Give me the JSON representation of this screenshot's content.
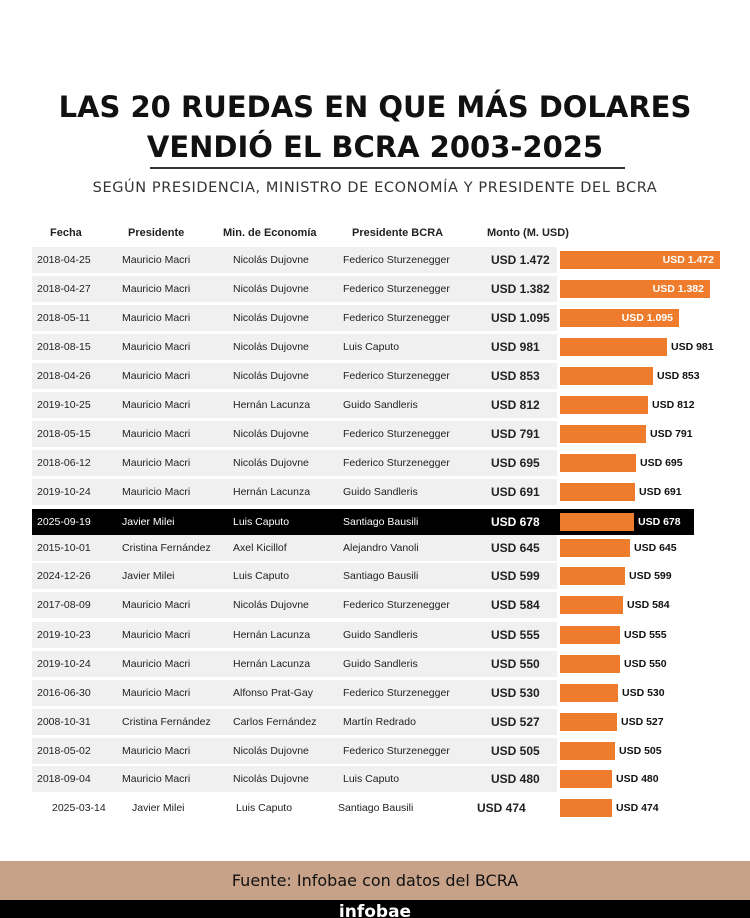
{
  "header": {
    "title_line1": "LAS 20 RUEDAS EN QUE MÁS DOLARES",
    "title_line2": "VENDIÓ EL BCRA 2003-2025",
    "subtitle": "SEGÚN PRESIDENCIA, MINISTRO DE ECONOMÍA Y PRESIDENTE DEL BCRA"
  },
  "columns": {
    "fecha": "Fecha",
    "presidente": "Presidente",
    "min_economia": "Min. de Economía",
    "presidente_bcra": "Presidente BCRA",
    "monto": "Monto (M. USD)"
  },
  "colors": {
    "bar": "#ee7c2c",
    "highlight_row": "#000000",
    "row_bg": "#f0f0f0",
    "footer_bg": "#c8a288"
  },
  "chart_data": {
    "type": "bar",
    "orientation": "horizontal",
    "title": "LAS 20 RUEDAS EN QUE MÁS DOLARES VENDIÓ EL BCRA 2003-2025",
    "subtitle": "SEGÚN PRESIDENCIA, MINISTRO DE ECONOMÍA Y PRESIDENTE DEL BCRA",
    "unit": "M. USD",
    "highlight_index": 9,
    "rows": [
      {
        "fecha": "2018-04-25",
        "presidente": "Mauricio Macri",
        "ministro": "Nicolás Dujovne",
        "bcra": "Federico Sturzenegger",
        "value": 1472,
        "monto": "USD 1.472"
      },
      {
        "fecha": "2018-04-27",
        "presidente": "Mauricio Macri",
        "ministro": "Nicolás Dujovne",
        "bcra": "Federico Sturzenegger",
        "value": 1382,
        "monto": "USD 1.382"
      },
      {
        "fecha": "2018-05-11",
        "presidente": "Mauricio Macri",
        "ministro": "Nicolás Dujovne",
        "bcra": "Federico Sturzenegger",
        "value": 1095,
        "monto": "USD 1.095"
      },
      {
        "fecha": "2018-08-15",
        "presidente": "Mauricio Macri",
        "ministro": "Nicolás Dujovne",
        "bcra": "Luis Caputo",
        "value": 981,
        "monto": "USD 981"
      },
      {
        "fecha": "2018-04-26",
        "presidente": "Mauricio Macri",
        "ministro": "Nicolás Dujovne",
        "bcra": "Federico Sturzenegger",
        "value": 853,
        "monto": "USD 853"
      },
      {
        "fecha": "2019-10-25",
        "presidente": "Mauricio Macri",
        "ministro": "Hernán Lacunza",
        "bcra": "Guido Sandleris",
        "value": 812,
        "monto": "USD 812"
      },
      {
        "fecha": "2018-05-15",
        "presidente": "Mauricio Macri",
        "ministro": "Nicolás Dujovne",
        "bcra": "Federico Sturzenegger",
        "value": 791,
        "monto": "USD 791"
      },
      {
        "fecha": "2018-06-12",
        "presidente": "Mauricio Macri",
        "ministro": "Nicolás Dujovne",
        "bcra": "Federico Sturzenegger",
        "value": 695,
        "monto": "USD 695"
      },
      {
        "fecha": "2019-10-24",
        "presidente": "Mauricio Macri",
        "ministro": "Hernán Lacunza",
        "bcra": "Guido Sandleris",
        "value": 691,
        "monto": "USD 691"
      },
      {
        "fecha": "2025-09-19",
        "presidente": "Javier Milei",
        "ministro": "Luis Caputo",
        "bcra": "Santiago Bausili",
        "value": 678,
        "monto": "USD 678"
      },
      {
        "fecha": "2015-10-01",
        "presidente": "Cristina Fernández",
        "ministro": "Axel Kicillof",
        "bcra": "Alejandro Vanoli",
        "value": 645,
        "monto": "USD 645"
      },
      {
        "fecha": "2024-12-26",
        "presidente": "Javier Milei",
        "ministro": "Luis Caputo",
        "bcra": "Santiago Bausili",
        "value": 599,
        "monto": "USD 599"
      },
      {
        "fecha": "2017-08-09",
        "presidente": "Mauricio Macri",
        "ministro": "Nicolás Dujovne",
        "bcra": "Federico Sturzenegger",
        "value": 584,
        "monto": "USD 584"
      },
      {
        "fecha": "2019-10-23",
        "presidente": "Mauricio Macri",
        "ministro": "Hernán Lacunza",
        "bcra": "Guido Sandleris",
        "value": 555,
        "monto": "USD 555"
      },
      {
        "fecha": "2019-10-24",
        "presidente": "Mauricio Macri",
        "ministro": "Hernán Lacunza",
        "bcra": "Guido Sandleris",
        "value": 550,
        "monto": "USD 550"
      },
      {
        "fecha": "2016-06-30",
        "presidente": "Mauricio Macri",
        "ministro": "Alfonso Prat-Gay",
        "bcra": "Federico Sturzenegger",
        "value": 530,
        "monto": "USD 530"
      },
      {
        "fecha": "2008-10-31",
        "presidente": "Cristina Fernández",
        "ministro": "Carlos Fernández",
        "bcra": "Martín Redrado",
        "value": 527,
        "monto": "USD 527"
      },
      {
        "fecha": "2018-05-02",
        "presidente": "Mauricio Macri",
        "ministro": "Nicolás Dujovne",
        "bcra": "Federico Sturzenegger",
        "value": 505,
        "monto": "USD 505"
      },
      {
        "fecha": "2018-09-04",
        "presidente": "Mauricio Macri",
        "ministro": "Nicolás Dujovne",
        "bcra": "Luis Caputo",
        "value": 480,
        "monto": "USD 480"
      },
      {
        "fecha": "2025-03-14",
        "presidente": "Javier Milei",
        "ministro": "Luis Caputo",
        "bcra": "Santiago Bausili",
        "value": 474,
        "monto": "USD 474"
      }
    ]
  },
  "footer": {
    "source": "Fuente: Infobae con datos del BCRA",
    "brand": "infobae"
  }
}
